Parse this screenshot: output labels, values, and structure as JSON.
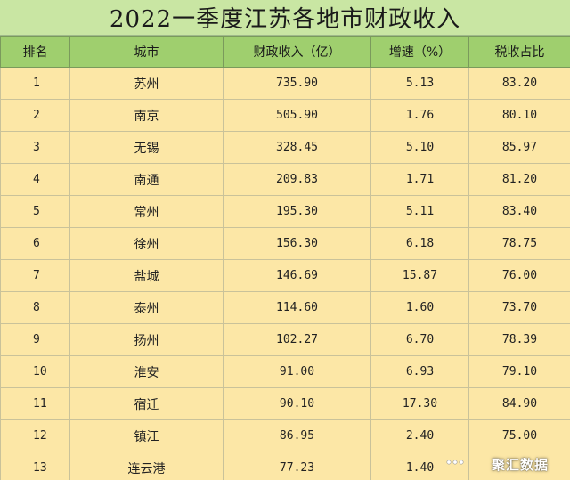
{
  "title": "2022一季度江苏各地市财政收入",
  "headers": [
    "排名",
    "城市",
    "财政收入（亿）",
    "增速（%）",
    "税收占比"
  ],
  "rows": [
    {
      "rank": "1",
      "city": "苏州",
      "revenue": "735.90",
      "growth": "5.13",
      "tax_share": "83.20"
    },
    {
      "rank": "2",
      "city": "南京",
      "revenue": "505.90",
      "growth": "1.76",
      "tax_share": "80.10"
    },
    {
      "rank": "3",
      "city": "无锡",
      "revenue": "328.45",
      "growth": "5.10",
      "tax_share": "85.97"
    },
    {
      "rank": "4",
      "city": "南通",
      "revenue": "209.83",
      "growth": "1.71",
      "tax_share": "81.20"
    },
    {
      "rank": "5",
      "city": "常州",
      "revenue": "195.30",
      "growth": "5.11",
      "tax_share": "83.40"
    },
    {
      "rank": "6",
      "city": "徐州",
      "revenue": "156.30",
      "growth": "6.18",
      "tax_share": "78.75"
    },
    {
      "rank": "7",
      "city": "盐城",
      "revenue": "146.69",
      "growth": "15.87",
      "tax_share": "76.00"
    },
    {
      "rank": "8",
      "city": "泰州",
      "revenue": "114.60",
      "growth": "1.60",
      "tax_share": "73.70"
    },
    {
      "rank": "9",
      "city": "扬州",
      "revenue": "102.27",
      "growth": "6.70",
      "tax_share": "78.39"
    },
    {
      "rank": "10",
      "city": "淮安",
      "revenue": "91.00",
      "growth": "6.93",
      "tax_share": "79.10"
    },
    {
      "rank": "11",
      "city": "宿迁",
      "revenue": "90.10",
      "growth": "17.30",
      "tax_share": "84.90"
    },
    {
      "rank": "12",
      "city": "镇江",
      "revenue": "86.95",
      "growth": "2.40",
      "tax_share": "75.00"
    },
    {
      "rank": "13",
      "city": "连云港",
      "revenue": "77.23",
      "growth": "1.40",
      "tax_share": ""
    }
  ],
  "watermark": "聚汇数据",
  "colors": {
    "title_bg": "#c9e6a3",
    "header_bg": "#9fcf6e",
    "row_bg": "#fce7a6"
  }
}
